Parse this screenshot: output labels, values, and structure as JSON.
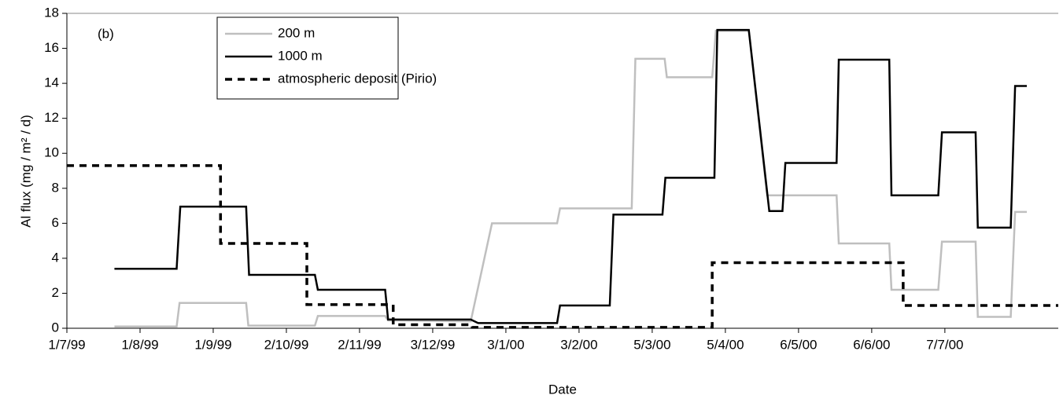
{
  "chart_data": {
    "type": "line",
    "annotation": "(b)",
    "x_label": "Date",
    "y_label": "Al flux  (mg / m² / d)",
    "xlim": [
      0,
      13.55
    ],
    "xticks": [
      {
        "value": 0,
        "label": "1/7/99"
      },
      {
        "value": 1,
        "label": "1/8/99"
      },
      {
        "value": 2,
        "label": "1/9/99"
      },
      {
        "value": 3,
        "label": "2/10/99"
      },
      {
        "value": 4,
        "label": "2/11/99"
      },
      {
        "value": 5,
        "label": "3/12/99"
      },
      {
        "value": 6,
        "label": "3/1/00"
      },
      {
        "value": 7,
        "label": "3/2/00"
      },
      {
        "value": 8,
        "label": "5/3/00"
      },
      {
        "value": 9,
        "label": "5/4/00"
      },
      {
        "value": 10,
        "label": "6/5/00"
      },
      {
        "value": 11,
        "label": "6/6/00"
      },
      {
        "value": 12,
        "label": "7/7/00"
      }
    ],
    "ylim": [
      0,
      18
    ],
    "yticks": [
      0,
      2,
      4,
      6,
      8,
      10,
      12,
      14,
      16,
      18
    ],
    "series": [
      {
        "name": "200 m",
        "color": "#bfbfbf",
        "style": "solid",
        "x": [
          0.65,
          1.5,
          1.54,
          2.45,
          2.48,
          3.39,
          3.43,
          4.35,
          4.39,
          5.52,
          5.81,
          6.7,
          6.74,
          7.72,
          7.77,
          8.17,
          8.2,
          8.82,
          8.87,
          9.32,
          9.57,
          10.52,
          10.55,
          11.24,
          11.27,
          11.91,
          11.96,
          12.42,
          12.45,
          12.9,
          12.96,
          13.12
        ],
        "values": [
          0.1,
          0.1,
          1.45,
          1.45,
          0.15,
          0.15,
          0.7,
          0.7,
          0.45,
          0.4,
          6.0,
          6.0,
          6.85,
          6.85,
          15.4,
          15.4,
          14.35,
          14.35,
          17.0,
          17.0,
          7.6,
          7.6,
          4.85,
          4.85,
          2.2,
          2.2,
          4.95,
          4.95,
          0.65,
          0.65,
          6.65,
          6.65
        ]
      },
      {
        "name": "1000 m",
        "color": "#000000",
        "style": "solid",
        "x": [
          0.65,
          1.5,
          1.55,
          2.45,
          2.49,
          3.39,
          3.43,
          4.35,
          4.39,
          5.52,
          5.62,
          6.7,
          6.74,
          7.42,
          7.47,
          8.14,
          8.18,
          8.85,
          8.89,
          9.32,
          9.6,
          9.78,
          9.82,
          10.52,
          10.55,
          11.24,
          11.27,
          11.91,
          11.96,
          12.42,
          12.45,
          12.9,
          12.96,
          13.12
        ],
        "values": [
          3.4,
          3.4,
          6.95,
          6.95,
          3.05,
          3.05,
          2.2,
          2.2,
          0.5,
          0.5,
          0.3,
          0.3,
          1.3,
          1.3,
          6.5,
          6.5,
          8.6,
          8.6,
          17.05,
          17.05,
          6.7,
          6.7,
          9.45,
          9.45,
          15.35,
          15.35,
          7.6,
          7.6,
          11.2,
          11.2,
          5.75,
          5.75,
          13.85,
          13.85
        ]
      },
      {
        "name": "atmospheric deposit (Pirio)",
        "color": "#000000",
        "style": "dashed",
        "x": [
          0,
          2.1,
          2.1,
          3.28,
          3.28,
          4.46,
          4.46,
          5.54,
          5.54,
          8.82,
          8.82,
          11.43,
          11.43,
          13.55
        ],
        "values": [
          9.3,
          9.3,
          4.85,
          4.85,
          1.35,
          1.35,
          0.2,
          0.2,
          0.05,
          0.05,
          3.75,
          3.75,
          1.3,
          1.3
        ]
      }
    ]
  }
}
